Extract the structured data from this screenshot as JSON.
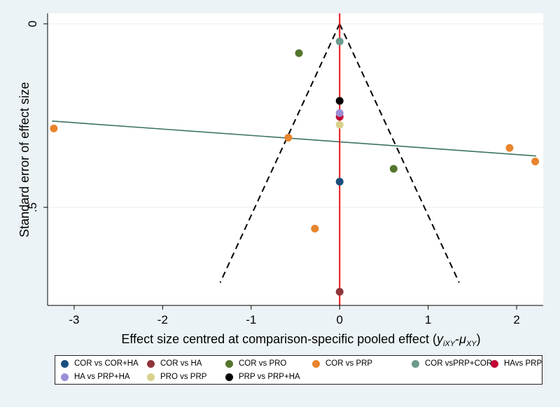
{
  "chart_data": {
    "type": "scatter",
    "xlabel_main": "Effect size centred at comparison-specific pooled effect (",
    "xlabel_math": "y",
    "xlabel_sub1": "iXY",
    "xlabel_dash": "-",
    "xlabel_mu": "μ",
    "xlabel_sub2": "XY",
    "xlabel_close": ")",
    "ylabel": "Standard error of effect size",
    "xlim": [
      -3.3,
      2.3
    ],
    "ylim": [
      0,
      0.75
    ],
    "y_reversed": true,
    "x_ticks": [
      {
        "value": -3,
        "label": "-3"
      },
      {
        "value": -2,
        "label": "-2"
      },
      {
        "value": -1,
        "label": "-1"
      },
      {
        "value": 0,
        "label": "0"
      },
      {
        "value": 1,
        "label": "1"
      },
      {
        "value": 2,
        "label": "2"
      }
    ],
    "y_ticks": [
      {
        "value": 0,
        "label": "0"
      },
      {
        "value": 0.5,
        "label": ".5"
      }
    ],
    "reference_line_x": 0,
    "reference_line_color": "#e8141b",
    "funnel": {
      "apex": [
        0,
        0
      ],
      "left": [
        -1.35,
        0.705
      ],
      "right": [
        1.35,
        0.705
      ]
    },
    "regression_line": {
      "x": [
        -3.25,
        2.22
      ],
      "y": [
        0.265,
        0.36
      ],
      "color": "#3a7461"
    },
    "series": [
      {
        "name": "COR  vs COR+HA",
        "color": "#1a4e7c",
        "points": [
          {
            "x": 0.0,
            "y": 0.43
          }
        ]
      },
      {
        "name": "COR  vs HA",
        "color": "#90353b",
        "points": [
          {
            "x": 0.0,
            "y": 0.73
          }
        ]
      },
      {
        "name": "COR  vs PRO",
        "color": "#55752f",
        "points": [
          {
            "x": -0.46,
            "y": 0.08
          },
          {
            "x": 0.61,
            "y": 0.395
          }
        ]
      },
      {
        "name": "COR  vs PRP",
        "color": "#e8842d",
        "points": [
          {
            "x": -3.23,
            "y": 0.285
          },
          {
            "x": -0.58,
            "y": 0.31
          },
          {
            "x": -0.28,
            "y": 0.558
          },
          {
            "x": 1.92,
            "y": 0.338
          },
          {
            "x": 2.21,
            "y": 0.375
          }
        ]
      },
      {
        "name": "COR  vsPRP+COR",
        "color": "#6c9a8b",
        "points": [
          {
            "x": 0.0,
            "y": 0.048
          }
        ]
      },
      {
        "name": "HAvs PRP",
        "color": "#c10534",
        "points": [
          {
            "x": 0.0,
            "y": 0.253
          }
        ]
      },
      {
        "name": "HA vs PRP+HA",
        "color": "#9b8dd6",
        "points": [
          {
            "x": 0.0,
            "y": 0.243
          }
        ]
      },
      {
        "name": "PRO vs PRP",
        "color": "#d9d28c",
        "points": [
          {
            "x": 0.0,
            "y": 0.275
          }
        ]
      },
      {
        "name": "PRP  vs PRP+HA",
        "color": "#000000",
        "points": [
          {
            "x": 0.0,
            "y": 0.21
          }
        ]
      }
    ]
  }
}
